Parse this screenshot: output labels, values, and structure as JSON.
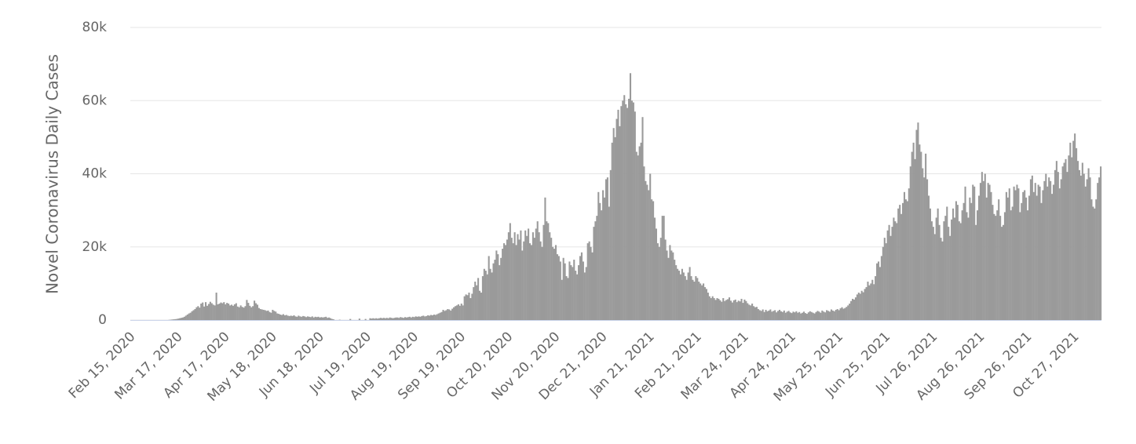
{
  "chart_data": {
    "type": "bar",
    "y_label": "Novel Coronavirus Daily Cases",
    "color": "#9a9a9a",
    "grid": true,
    "ylim": [
      0,
      80000
    ],
    "yticks": [
      0,
      {
        "value": 20000,
        "label": "20k"
      },
      {
        "value": 40000,
        "label": "40k"
      },
      {
        "value": 60000,
        "label": "60k"
      },
      {
        "value": 80000,
        "label": "80k"
      }
    ],
    "categories": [
      "Feb 15, 2020",
      null,
      null,
      null,
      null,
      null,
      null,
      null,
      null,
      null,
      null,
      null,
      null,
      null,
      null,
      null,
      null,
      null,
      null,
      null,
      null,
      null,
      null,
      null,
      null,
      null,
      null,
      null,
      null,
      null,
      null,
      "Mar 17, 2020",
      null,
      null,
      null,
      null,
      null,
      null,
      null,
      null,
      null,
      null,
      null,
      null,
      null,
      null,
      null,
      null,
      null,
      null,
      null,
      null,
      null,
      null,
      null,
      null,
      null,
      null,
      null,
      null,
      null,
      null,
      "Apr 17, 2020",
      null,
      null,
      null,
      null,
      null,
      null,
      null,
      null,
      null,
      null,
      null,
      null,
      null,
      null,
      null,
      null,
      null,
      null,
      null,
      null,
      null,
      null,
      null,
      null,
      null,
      null,
      null,
      null,
      null,
      null,
      "May 18, 2020",
      null,
      null,
      null,
      null,
      null,
      null,
      null,
      null,
      null,
      null,
      null,
      null,
      null,
      null,
      null,
      null,
      null,
      null,
      null,
      null,
      null,
      null,
      null,
      null,
      null,
      null,
      null,
      null,
      null,
      null,
      "Jun 18, 2020",
      null,
      null,
      null,
      null,
      null,
      null,
      null,
      null,
      null,
      null,
      null,
      null,
      null,
      null,
      null,
      null,
      null,
      null,
      null,
      null,
      null,
      null,
      null,
      null,
      null,
      null,
      null,
      null,
      null,
      null,
      "Jul 19, 2020",
      null,
      null,
      null,
      null,
      null,
      null,
      null,
      null,
      null,
      null,
      null,
      null,
      null,
      null,
      null,
      null,
      null,
      null,
      null,
      null,
      null,
      null,
      null,
      null,
      null,
      null,
      null,
      null,
      null,
      null,
      "Aug 19, 2020",
      null,
      null,
      null,
      null,
      null,
      null,
      null,
      null,
      null,
      null,
      null,
      null,
      null,
      null,
      null,
      null,
      null,
      null,
      null,
      null,
      null,
      null,
      null,
      null,
      null,
      null,
      null,
      null,
      null,
      null,
      "Sep 19, 2020",
      null,
      null,
      null,
      null,
      null,
      null,
      null,
      null,
      null,
      null,
      null,
      null,
      null,
      null,
      null,
      null,
      null,
      null,
      null,
      null,
      null,
      null,
      null,
      null,
      null,
      null,
      null,
      null,
      null,
      null,
      "Oct 20, 2020",
      null,
      null,
      null,
      null,
      null,
      null,
      null,
      null,
      null,
      null,
      null,
      null,
      null,
      null,
      null,
      null,
      null,
      null,
      null,
      null,
      null,
      null,
      null,
      null,
      null,
      null,
      null,
      null,
      null,
      null,
      "Nov 20, 2020",
      null,
      null,
      null,
      null,
      null,
      null,
      null,
      null,
      null,
      null,
      null,
      null,
      null,
      null,
      null,
      null,
      null,
      null,
      null,
      null,
      null,
      null,
      null,
      null,
      null,
      null,
      null,
      null,
      null,
      null,
      "Dec 21, 2020",
      null,
      null,
      null,
      null,
      null,
      null,
      null,
      null,
      null,
      null,
      null,
      null,
      null,
      null,
      null,
      null,
      null,
      null,
      null,
      null,
      null,
      null,
      null,
      null,
      null,
      null,
      null,
      null,
      null,
      null,
      "Jan 21, 2021",
      null,
      null,
      null,
      null,
      null,
      null,
      null,
      null,
      null,
      null,
      null,
      null,
      null,
      null,
      null,
      null,
      null,
      null,
      null,
      null,
      null,
      null,
      null,
      null,
      null,
      null,
      null,
      null,
      null,
      null,
      "Feb 21, 2021",
      null,
      null,
      null,
      null,
      null,
      null,
      null,
      null,
      null,
      null,
      null,
      null,
      null,
      null,
      null,
      null,
      null,
      null,
      null,
      null,
      null,
      null,
      null,
      null,
      null,
      null,
      null,
      null,
      null,
      null,
      "Mar 24, 2021",
      null,
      null,
      null,
      null,
      null,
      null,
      null,
      null,
      null,
      null,
      null,
      null,
      null,
      null,
      null,
      null,
      null,
      null,
      null,
      null,
      null,
      null,
      null,
      null,
      null,
      null,
      null,
      null,
      null,
      null,
      "Apr 24, 2021",
      null,
      null,
      null,
      null,
      null,
      null,
      null,
      null,
      null,
      null,
      null,
      null,
      null,
      null,
      null,
      null,
      null,
      null,
      null,
      null,
      null,
      null,
      null,
      null,
      null,
      null,
      null,
      null,
      null,
      null,
      "May 25, 2021",
      null,
      null,
      null,
      null,
      null,
      null,
      null,
      null,
      null,
      null,
      null,
      null,
      null,
      null,
      null,
      null,
      null,
      null,
      null,
      null,
      null,
      null,
      null,
      null,
      null,
      null,
      null,
      null,
      null,
      null,
      "Jun 25, 2021",
      null,
      null,
      null,
      null,
      null,
      null,
      null,
      null,
      null,
      null,
      null,
      null,
      null,
      null,
      null,
      null,
      null,
      null,
      null,
      null,
      null,
      null,
      null,
      null,
      null,
      null,
      null,
      null,
      null,
      null,
      "Jul 26, 2021",
      null,
      null,
      null,
      null,
      null,
      null,
      null,
      null,
      null,
      null,
      null,
      null,
      null,
      null,
      null,
      null,
      null,
      null,
      null,
      null,
      null,
      null,
      null,
      null,
      null,
      null,
      null,
      null,
      null,
      null,
      "Aug 26, 2021",
      null,
      null,
      null,
      null,
      null,
      null,
      null,
      null,
      null,
      null,
      null,
      null,
      null,
      null,
      null,
      null,
      null,
      null,
      null,
      null,
      null,
      null,
      null,
      null,
      null,
      null,
      null,
      null,
      null,
      null,
      "Sep 26, 2021",
      null,
      null,
      null,
      null,
      null,
      null,
      null,
      null,
      null,
      null,
      null,
      null,
      null,
      null,
      null,
      null,
      null,
      null,
      null,
      null,
      null,
      null,
      null,
      null,
      null,
      null,
      null,
      null,
      null,
      null,
      "Oct 27, 2021",
      null,
      null,
      null,
      null,
      null,
      null,
      null,
      null,
      null,
      null,
      null,
      null,
      null,
      null,
      null,
      null,
      null
    ],
    "values": [
      0,
      0,
      0,
      0,
      0,
      0,
      0,
      0,
      0,
      0,
      0,
      0,
      0,
      0,
      0,
      0,
      0,
      0,
      0,
      0,
      0,
      0,
      0,
      0,
      0,
      50,
      100,
      150,
      200,
      250,
      300,
      400,
      500,
      600,
      700,
      900,
      1200,
      1500,
      1800,
      2000,
      2400,
      2700,
      3000,
      3500,
      3800,
      3400,
      4500,
      4800,
      3700,
      4900,
      3900,
      4400,
      5000,
      4600,
      4200,
      4000,
      7500,
      4300,
      4500,
      4800,
      4600,
      4900,
      4300,
      4700,
      4500,
      4000,
      4200,
      3900,
      4300,
      4600,
      3700,
      3500,
      4000,
      3600,
      3400,
      3800,
      5500,
      4700,
      3900,
      3500,
      3800,
      5300,
      4600,
      4200,
      3300,
      3000,
      2900,
      2800,
      2700,
      2500,
      2600,
      2200,
      2000,
      2800,
      2500,
      2300,
      1800,
      1700,
      1500,
      1400,
      1600,
      1300,
      1400,
      1200,
      1100,
      1200,
      1100,
      1300,
      1000,
      900,
      1200,
      1000,
      900,
      1100,
      1000,
      800,
      1000,
      900,
      800,
      1000,
      700,
      900,
      800,
      900,
      700,
      800,
      700,
      800,
      900,
      600,
      700,
      500,
      300,
      200,
      0,
      0,
      0,
      100,
      0,
      0,
      0,
      0,
      0,
      0,
      300,
      0,
      0,
      0,
      0,
      0,
      400,
      0,
      0,
      0,
      300,
      0,
      0,
      500,
      400,
      500,
      400,
      500,
      400,
      500,
      600,
      500,
      600,
      500,
      600,
      500,
      700,
      600,
      500,
      600,
      700,
      700,
      600,
      800,
      700,
      600,
      800,
      700,
      800,
      900,
      700,
      900,
      800,
      1000,
      900,
      1000,
      900,
      1100,
      1200,
      1000,
      1100,
      1300,
      1200,
      1400,
      1300,
      1500,
      1400,
      1600,
      1800,
      2000,
      2200,
      2800,
      2500,
      2700,
      3000,
      2900,
      2600,
      3100,
      3500,
      3800,
      4000,
      4300,
      3900,
      4500,
      4000,
      6500,
      7000,
      6800,
      7500,
      6000,
      7200,
      9000,
      10500,
      9500,
      11500,
      8000,
      7500,
      12000,
      14000,
      13500,
      12500,
      17500,
      14000,
      13000,
      15500,
      16500,
      19000,
      18000,
      15000,
      17000,
      19500,
      21000,
      20500,
      22000,
      24000,
      26500,
      22500,
      21000,
      24000,
      20500,
      23500,
      22000,
      24500,
      19000,
      21500,
      24500,
      23000,
      25000,
      21000,
      20500,
      24000,
      22500,
      25000,
      27000,
      24000,
      21500,
      20000,
      26000,
      33500,
      27000,
      26500,
      24000,
      22500,
      20000,
      19500,
      20500,
      18000,
      17500,
      16000,
      11000,
      17000,
      15500,
      12000,
      11500,
      16000,
      15000,
      14500,
      16500,
      13500,
      12500,
      15000,
      17500,
      18500,
      16000,
      13000,
      14500,
      21000,
      21500,
      20000,
      18500,
      25500,
      27000,
      28500,
      35000,
      32000,
      30000,
      35500,
      33500,
      38500,
      39000,
      31000,
      41000,
      48500,
      52500,
      50000,
      55000,
      57500,
      53000,
      58500,
      60000,
      61500,
      59000,
      58000,
      60500,
      67500,
      60000,
      59500,
      57000,
      46000,
      45000,
      47500,
      48500,
      55500,
      42000,
      38000,
      37000,
      35500,
      40000,
      33000,
      32500,
      28000,
      25000,
      21000,
      20000,
      22500,
      28500,
      28500,
      22000,
      19000,
      17000,
      20500,
      19000,
      18500,
      16500,
      15000,
      14000,
      13500,
      12500,
      14000,
      13000,
      12000,
      11000,
      13000,
      14500,
      12000,
      11000,
      10500,
      12000,
      11500,
      10500,
      10000,
      9500,
      10000,
      9000,
      8500,
      7500,
      6500,
      6000,
      6500,
      6000,
      5500,
      6000,
      5800,
      5400,
      5000,
      6000,
      5200,
      5500,
      5700,
      6200,
      5300,
      4800,
      5400,
      5600,
      4900,
      5300,
      5100,
      5800,
      4700,
      5600,
      5200,
      4600,
      4200,
      4000,
      4500,
      3800,
      3500,
      3600,
      3000,
      2700,
      2500,
      2900,
      2200,
      2800,
      2400,
      2600,
      2900,
      2300,
      2500,
      2700,
      2100,
      2500,
      2800,
      2400,
      2200,
      2600,
      2000,
      2300,
      2500,
      2100,
      1900,
      2300,
      2100,
      2400,
      2000,
      2200,
      1800,
      2000,
      2300,
      1900,
      1700,
      2100,
      2400,
      2200,
      2000,
      1800,
      2200,
      2500,
      2300,
      2000,
      2600,
      2300,
      2100,
      2700,
      2500,
      2300,
      2900,
      2600,
      2400,
      2800,
      3000,
      2700,
      3200,
      3500,
      3100,
      3300,
      3600,
      4000,
      4500,
      5200,
      5800,
      5600,
      6200,
      7000,
      7500,
      7200,
      8000,
      7600,
      8500,
      9000,
      10500,
      9500,
      10000,
      11000,
      9800,
      12000,
      15500,
      16000,
      14500,
      17500,
      20000,
      22500,
      21000,
      24500,
      26000,
      23000,
      25500,
      28000,
      27000,
      26500,
      30500,
      31500,
      29000,
      32000,
      35000,
      33000,
      32500,
      36000,
      42000,
      46000,
      48500,
      44000,
      52000,
      54000,
      48000,
      46000,
      41500,
      39000,
      45500,
      38500,
      34000,
      30500,
      27000,
      25500,
      23500,
      28000,
      30500,
      26000,
      22500,
      21500,
      27000,
      28500,
      31000,
      25500,
      23000,
      27500,
      30500,
      28000,
      32500,
      31500,
      27000,
      26500,
      30000,
      32000,
      36500,
      29500,
      28000,
      33500,
      32000,
      37000,
      36500,
      26000,
      30000,
      34000,
      37500,
      40500,
      38000,
      40000,
      33500,
      37500,
      37000,
      35000,
      31500,
      29000,
      28500,
      30000,
      33000,
      28500,
      25500,
      26000,
      29500,
      35000,
      33500,
      36000,
      30000,
      31000,
      36500,
      35500,
      37000,
      36000,
      29500,
      32000,
      35000,
      35500,
      33500,
      30000,
      34000,
      38500,
      39500,
      35000,
      37500,
      34000,
      37000,
      36500,
      32000,
      35500,
      38000,
      40000,
      36500,
      39000,
      38000,
      34500,
      37000,
      41000,
      43500,
      40500,
      36000,
      38500,
      42000,
      43000,
      44000,
      40500,
      45000,
      48500,
      44500,
      49000,
      51000,
      47000,
      43500,
      41000,
      39500,
      43000,
      40000,
      36500,
      38500,
      41500,
      39000,
      33000,
      31000,
      30500,
      33000,
      37500,
      39000,
      42000
    ]
  }
}
